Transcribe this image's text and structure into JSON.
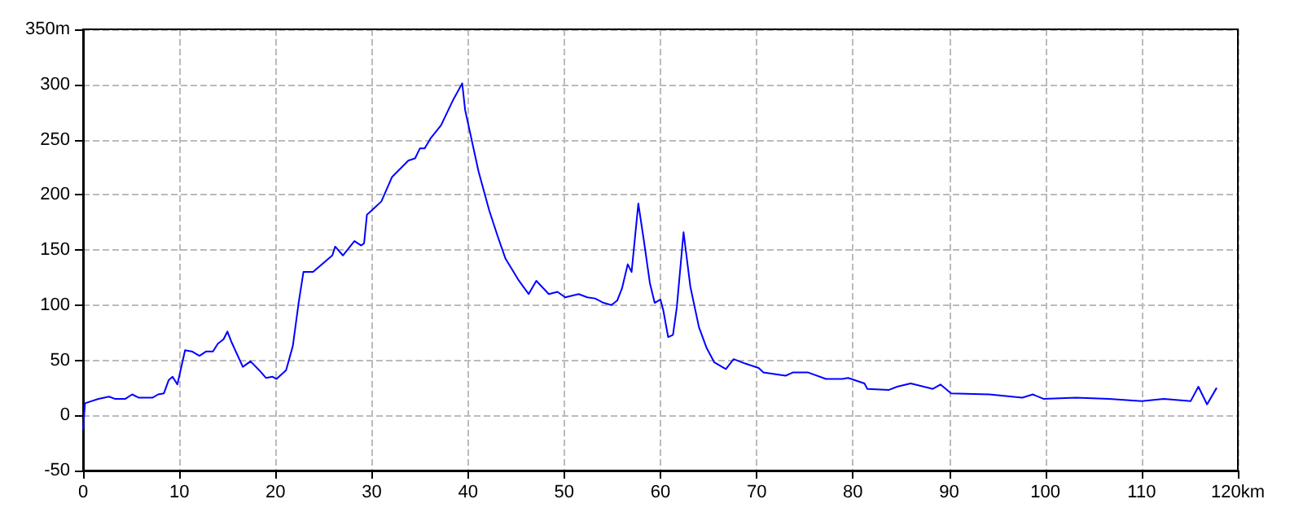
{
  "chart_data": {
    "type": "line",
    "x": [
      0,
      0.2,
      1.6,
      2.7,
      3.3,
      4.4,
      5.1,
      5.8,
      7.2,
      7.8,
      8.4,
      8.9,
      9.3,
      9.8,
      10.6,
      11.3,
      12.1,
      12.8,
      13.5,
      14.0,
      14.6,
      15.0,
      15.4,
      16.6,
      17.4,
      18.3,
      19.0,
      19.7,
      20.1,
      21.1,
      21.8,
      22.4,
      22.9,
      23.9,
      25.9,
      26.2,
      27.0,
      28.2,
      28.9,
      29.2,
      29.5,
      29.9,
      31.0,
      32.1,
      33.8,
      34.5,
      35.0,
      35.5,
      36.1,
      37.2,
      38.4,
      39.4,
      39.7,
      41.1,
      42.2,
      43.1,
      43.9,
      45.3,
      46.3,
      47.1,
      48.4,
      49.3,
      50.1,
      51.5,
      52.4,
      53.2,
      54.1,
      54.9,
      55.5,
      56.0,
      56.6,
      57.0,
      57.7,
      58.3,
      58.9,
      59.4,
      60.0,
      60.3,
      60.8,
      61.3,
      61.7,
      62.4,
      63.1,
      64.0,
      64.8,
      65.6,
      66.8,
      67.6,
      68.8,
      70.2,
      70.7,
      73.0,
      73.8,
      75.3,
      77.2,
      78.9,
      79.5,
      81.2,
      81.5,
      83.7,
      84.6,
      86.0,
      88.3,
      89.1,
      90.2,
      94.2,
      97.6,
      98.7,
      99.8,
      103.2,
      106.6,
      110.0,
      112.3,
      115.1,
      115.9,
      116.8,
      117.8
    ],
    "series": [
      {
        "color": "#0000ff",
        "values": [
          -13,
          11,
          15,
          17,
          15,
          15,
          19,
          16,
          16,
          19,
          20,
          32,
          35,
          28,
          59,
          58,
          54,
          58,
          58,
          65,
          69,
          76,
          67,
          44,
          49,
          41,
          34,
          35,
          33,
          41,
          63,
          102,
          130,
          130,
          145,
          153,
          145,
          158,
          154,
          156,
          182,
          185,
          194,
          216,
          231,
          233,
          242,
          242,
          251,
          263,
          285,
          301,
          277,
          221,
          186,
          162,
          142,
          122,
          110,
          122,
          110,
          112,
          107,
          110,
          107,
          106,
          102,
          100,
          104,
          115,
          137,
          130,
          192,
          157,
          120,
          102,
          105,
          95,
          71,
          73,
          98,
          166,
          117,
          80,
          61,
          48,
          42,
          51,
          47,
          43,
          39,
          36,
          39,
          39,
          33,
          33,
          34,
          29,
          24,
          23,
          26,
          29,
          24,
          28,
          20,
          19,
          16,
          19,
          15,
          16,
          15,
          13,
          15,
          13,
          26,
          10,
          25
        ]
      }
    ],
    "xlim": [
      0,
      120
    ],
    "xticks": [
      0,
      10,
      20,
      30,
      40,
      50,
      60,
      70,
      80,
      90,
      100,
      110,
      {
        "value": 120,
        "label": "120km"
      }
    ],
    "ylim": [
      -50,
      350
    ],
    "yticks": [
      -50,
      0,
      50,
      100,
      150,
      200,
      250,
      300,
      {
        "value": 350,
        "label": "350m"
      }
    ],
    "grid": true,
    "marker": "none",
    "line_style": "solid"
  }
}
